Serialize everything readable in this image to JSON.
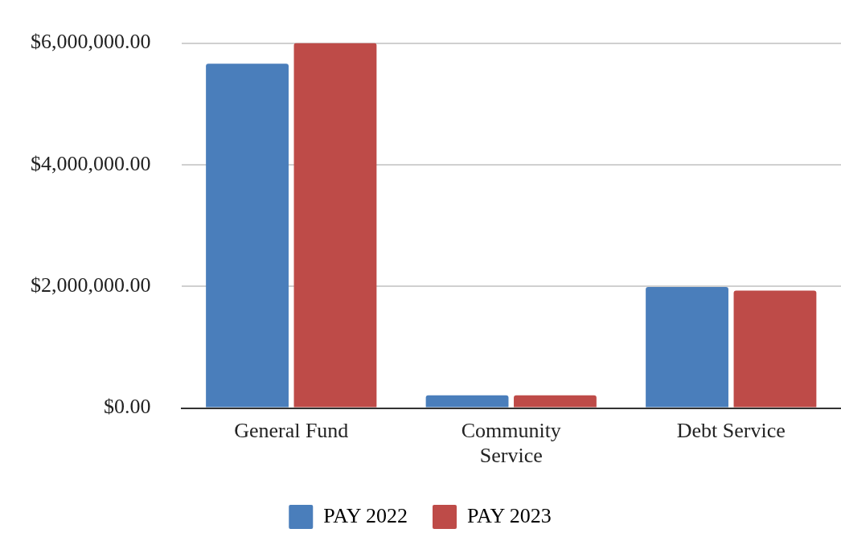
{
  "chart_data": {
    "type": "bar",
    "categories": [
      "General Fund",
      "Community Service",
      "Debt Service"
    ],
    "series": [
      {
        "name": "PAY 2022",
        "color": "#4a7ebb",
        "values": [
          5660000,
          210000,
          1990000
        ]
      },
      {
        "name": "PAY 2023",
        "color": "#be4b48",
        "values": [
          6000000,
          210000,
          1930000
        ]
      }
    ],
    "ylim": [
      0,
      6000000
    ],
    "yticks": [
      {
        "value": 0,
        "label": "$0.00"
      },
      {
        "value": 2000000,
        "label": "$2,000,000.00"
      },
      {
        "value": 4000000,
        "label": "$4,000,000.00"
      },
      {
        "value": 6000000,
        "label": "$6,000,000.00"
      }
    ],
    "grid": "y",
    "legend": "bottom"
  }
}
